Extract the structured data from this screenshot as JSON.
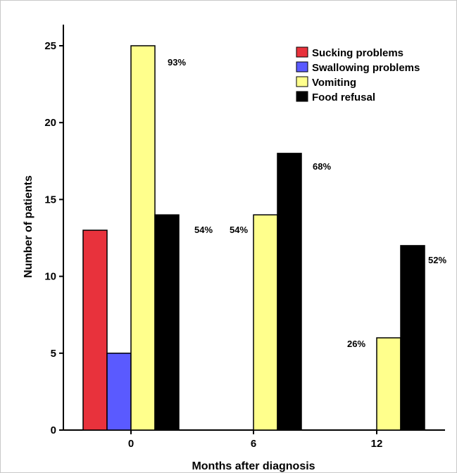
{
  "chart_data": {
    "type": "bar",
    "categories": [
      "0",
      "6",
      "12"
    ],
    "series": [
      {
        "name": "Sucking problems",
        "color": "#e8323c",
        "values": [
          13,
          0,
          0
        ]
      },
      {
        "name": "Swallowing problems",
        "color": "#5a5aff",
        "values": [
          5,
          0,
          0
        ]
      },
      {
        "name": "Vomiting",
        "color": "#ffff8c",
        "values": [
          25,
          14,
          6
        ]
      },
      {
        "name": "Food refusal",
        "color": "#000000",
        "values": [
          14,
          18,
          12
        ]
      }
    ],
    "data_labels": [
      {
        "category": "0",
        "series": "Vomiting",
        "text": "93%"
      },
      {
        "category": "0",
        "series": "Food refusal",
        "text": "54%"
      },
      {
        "category": "6",
        "series": "Vomiting",
        "text": "54%"
      },
      {
        "category": "6",
        "series": "Food refusal",
        "text": "68%"
      },
      {
        "category": "12",
        "series": "Vomiting",
        "text": "26%"
      },
      {
        "category": "12",
        "series": "Food refusal",
        "text": "52%"
      }
    ],
    "xlabel": "Months after diagnosis",
    "ylabel": "Number of patients",
    "ylim": [
      0,
      26
    ],
    "yticks": [
      0,
      5,
      10,
      15,
      20,
      25
    ],
    "grid": false,
    "legend_position": "top-right"
  }
}
